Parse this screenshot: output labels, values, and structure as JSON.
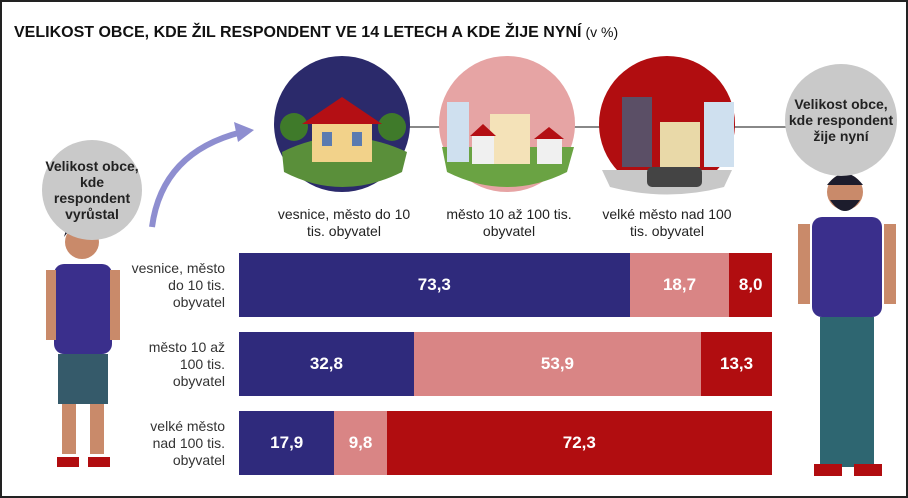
{
  "chart_data": {
    "type": "bar",
    "orientation": "horizontal",
    "stacked": true,
    "title": "VELIKOST OBCE, KDE ŽIL RESPONDENT VE 14 LETECH A KDE ŽIJE NYNÍ",
    "subtitle": "(v %)",
    "left_label": "Velikost obce, kde respondent vyrůstal",
    "right_label": "Velikost obce, kde respondent žije nyní",
    "categories": [
      "vesnice, město do 10 tis. obyvatel",
      "město 10 až 100 tis. obyvatel",
      "velké město nad 100 tis. obyvatel"
    ],
    "series": [
      {
        "name": "vesnice, město do 10 tis. obyvatel",
        "color": "#2f2a7c",
        "values": [
          73.3,
          32.8,
          17.9
        ],
        "value_labels": [
          "73,3",
          "32,8",
          "17,9"
        ]
      },
      {
        "name": "město 10 až 100 tis. obyvatel",
        "color": "#d98585",
        "values": [
          18.7,
          53.9,
          9.8
        ],
        "value_labels": [
          "18,7",
          "53,9",
          "9,8"
        ]
      },
      {
        "name": "velké město nad 100 tis. obyvatel",
        "color": "#b10d10",
        "values": [
          8.0,
          13.3,
          72.3
        ],
        "value_labels": [
          "8,0",
          "13,3",
          "72,3"
        ]
      }
    ]
  }
}
